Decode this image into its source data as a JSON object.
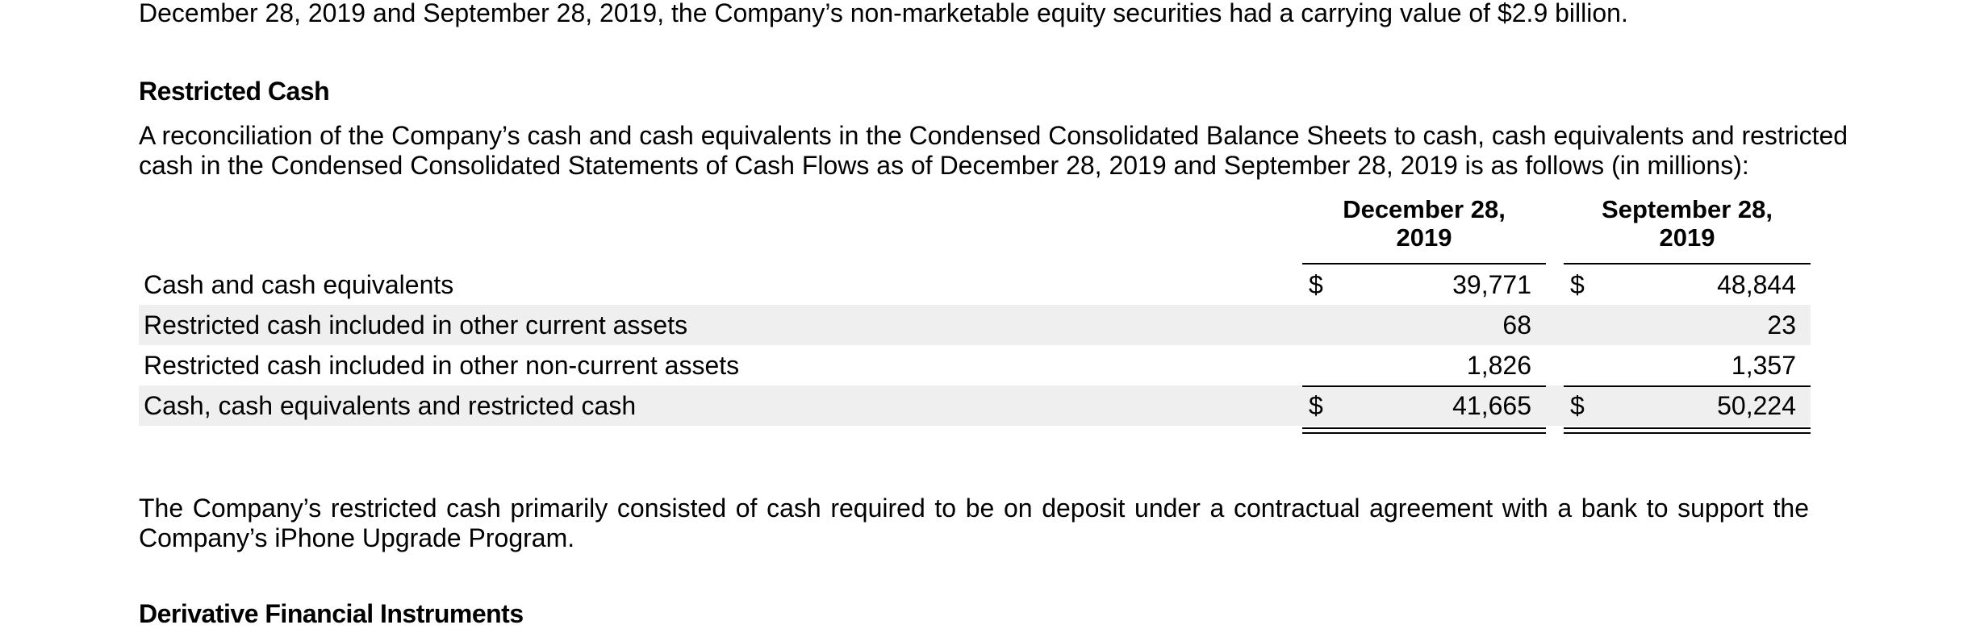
{
  "top_line": "December 28, 2019 and September 28, 2019, the Company’s non-marketable equity securities had a carrying value of $2.9 billion.",
  "section_heading": "Restricted Cash",
  "intro_paragraph": {
    "line1": "A reconciliation of the Company’s cash and cash equivalents in the Condensed Consolidated Balance Sheets to cash, cash equivalents and restricted",
    "line2": "cash in the Condensed Consolidated Statements of Cash Flows as of December 28, 2019 and September 28, 2019 is as follows (in millions):"
  },
  "table": {
    "columns": [
      {
        "line1": "December 28,",
        "line2": "2019"
      },
      {
        "line1": "September 28,",
        "line2": "2019"
      }
    ],
    "rows": [
      {
        "label": "Cash and cash equivalents",
        "cur1": "$",
        "val1": "39,771",
        "cur2": "$",
        "val2": "48,844"
      },
      {
        "label": "Restricted cash included in other current assets",
        "cur1": "",
        "val1": "68",
        "cur2": "",
        "val2": "23"
      },
      {
        "label": "Restricted cash included in other non-current assets",
        "cur1": "",
        "val1": "1,826",
        "cur2": "",
        "val2": "1,357"
      },
      {
        "label": "Cash, cash equivalents and restricted cash",
        "cur1": "$",
        "val1": "41,665",
        "cur2": "$",
        "val2": "50,224"
      }
    ]
  },
  "closing_paragraph": {
    "line1": "The Company’s restricted cash primarily consisted of cash required to be on deposit under a contractual agreement with a bank to support the",
    "line2": "Company’s iPhone Upgrade Program."
  },
  "next_heading": "Derivative Financial Instruments"
}
